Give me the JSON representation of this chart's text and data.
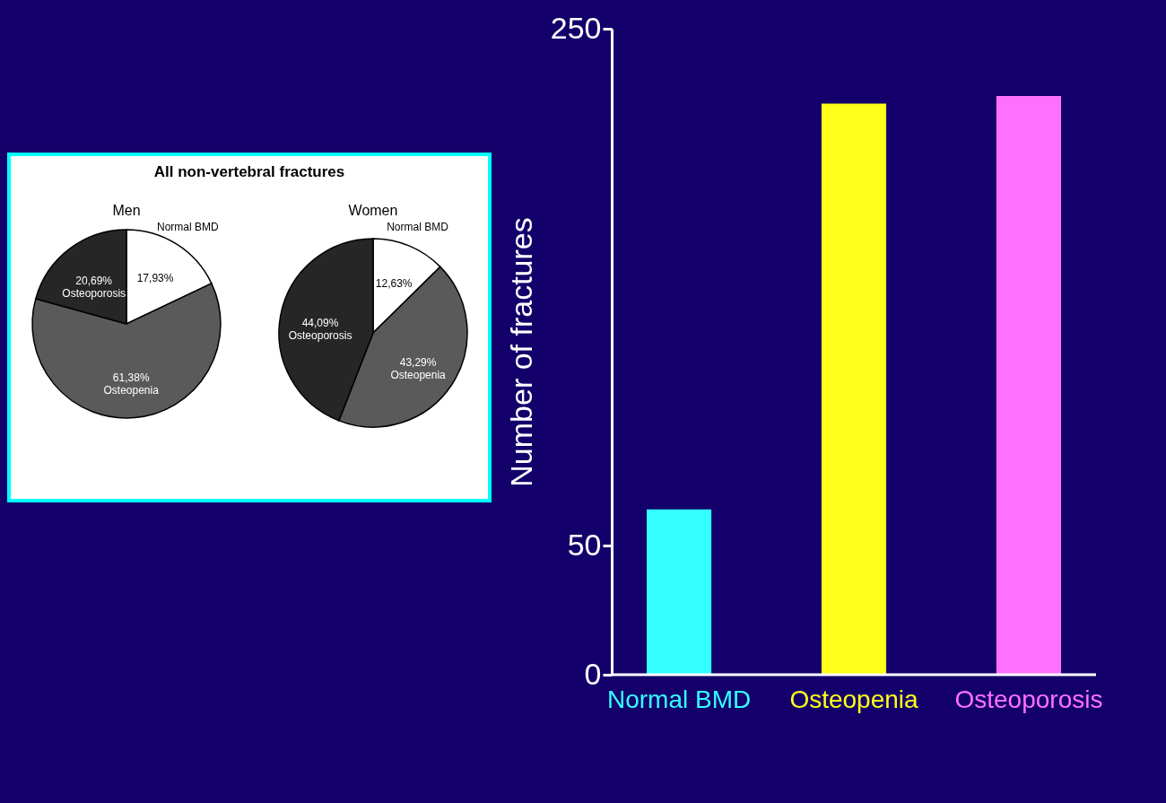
{
  "chart_data": [
    {
      "type": "bar",
      "ylabel": "Number of fractures",
      "categories": [
        "Normal BMD",
        "Osteopenia",
        "Osteoporosis"
      ],
      "values": [
        64,
        221,
        224
      ],
      "colors": [
        "#33ffff",
        "#ffff19",
        "#ff70ff"
      ],
      "ylim": [
        0,
        250
      ],
      "yticks": [
        0,
        50,
        250
      ],
      "grid": false,
      "legend": false
    },
    {
      "type": "pie",
      "title": "Men",
      "annotations": [
        "All non-vertebral fractures"
      ],
      "categories": [
        "Normal BMD",
        "Osteopenia",
        "Osteoporosis"
      ],
      "values": [
        17.93,
        61.38,
        20.69
      ],
      "value_labels": [
        "17,93%",
        "61,38%",
        "20,69%"
      ],
      "colors": [
        "#ffffff",
        "#5a5a5a",
        "#262626"
      ],
      "legend": false
    },
    {
      "type": "pie",
      "title": "Women",
      "categories": [
        "Normal BMD",
        "Osteopenia",
        "Osteoporosis"
      ],
      "values": [
        12.63,
        43.29,
        44.09
      ],
      "value_labels": [
        "12,63%",
        "43,29%",
        "44,09%"
      ],
      "colors": [
        "#ffffff",
        "#5a5a5a",
        "#262626"
      ],
      "legend": false
    }
  ]
}
